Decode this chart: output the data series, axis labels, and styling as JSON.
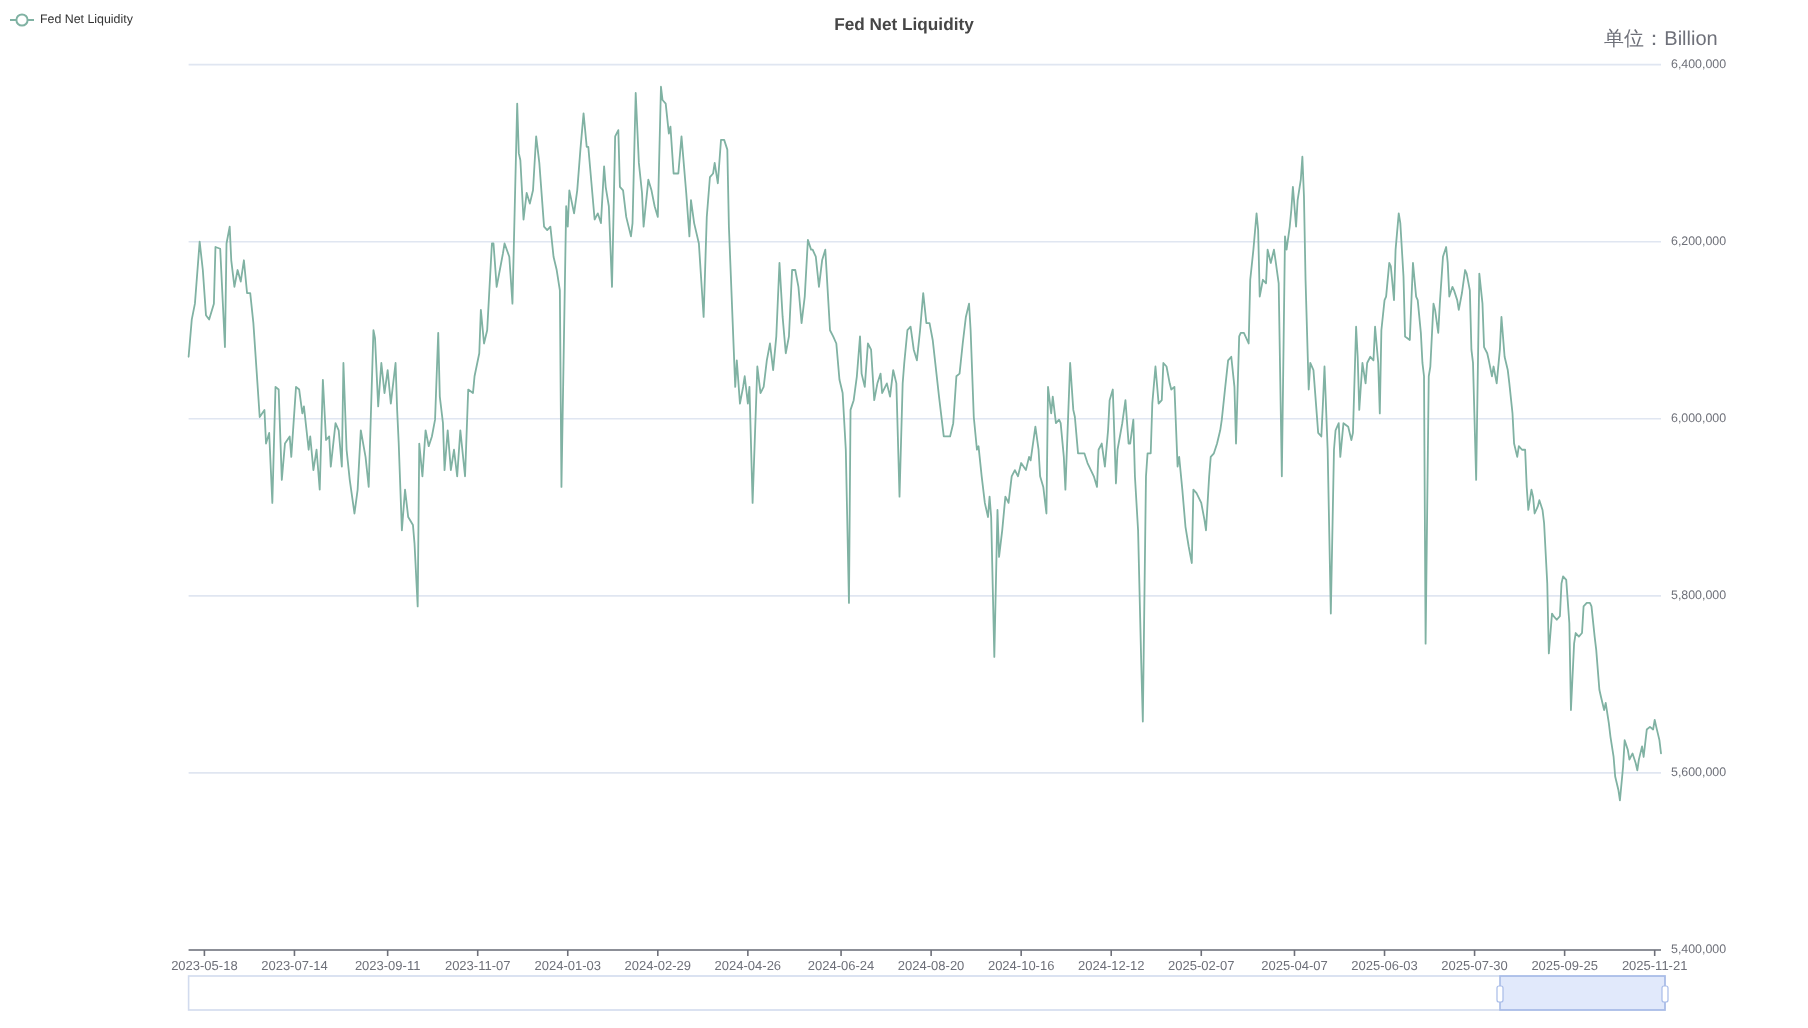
{
  "chart_data": {
    "type": "line",
    "title": "Fed Net Liquidity",
    "ylabel": "单位：Billion",
    "xlim": [
      "2023-05-08",
      "2025-11-25"
    ],
    "xticks": [
      "2023-05-18",
      "2023-07-14",
      "2023-09-11",
      "2023-11-07",
      "2024-01-03",
      "2024-02-29",
      "2024-04-26",
      "2024-06-24",
      "2024-08-20",
      "2024-10-16",
      "2024-12-12",
      "2025-02-07",
      "2025-04-07",
      "2025-06-03",
      "2025-07-30",
      "2025-09-25",
      "2025-11-21"
    ],
    "ylim": [
      5400000,
      6400000
    ],
    "yticks": [
      {
        "value": 5400000,
        "label": "5,400,000"
      },
      {
        "value": 5600000,
        "label": "5,600,000"
      },
      {
        "value": 5800000,
        "label": "5,800,000"
      },
      {
        "value": 6000000,
        "label": "6,000,000"
      },
      {
        "value": 6200000,
        "label": "6,200,000"
      },
      {
        "value": 6400000,
        "label": "6,400,000"
      }
    ],
    "grid": "y",
    "legend": "top left",
    "x": [
      "2023-05-08",
      "2023-05-10",
      "2023-05-12",
      "2023-05-15",
      "2023-05-17",
      "2023-05-19",
      "2023-05-21",
      "2023-05-24",
      "2023-05-25",
      "2023-05-28",
      "2023-05-31",
      "2023-06-01",
      "2023-06-03",
      "2023-06-04",
      "2023-06-06",
      "2023-06-08",
      "2023-06-10",
      "2023-06-12",
      "2023-06-14",
      "2023-06-16",
      "2023-06-18",
      "2023-06-20",
      "2023-06-22",
      "2023-06-25",
      "2023-06-26",
      "2023-06-28",
      "2023-06-30",
      "2023-07-02",
      "2023-07-04",
      "2023-07-06",
      "2023-07-08",
      "2023-07-11",
      "2023-07-12",
      "2023-07-15",
      "2023-07-17",
      "2023-07-19",
      "2023-07-20",
      "2023-07-23",
      "2023-07-24",
      "2023-07-26",
      "2023-07-28",
      "2023-07-30",
      "2023-08-01",
      "2023-08-03",
      "2023-08-05",
      "2023-08-06",
      "2023-08-09",
      "2023-08-11",
      "2023-08-13",
      "2023-08-14",
      "2023-08-16",
      "2023-08-18",
      "2023-08-21",
      "2023-08-23",
      "2023-08-25",
      "2023-08-28",
      "2023-08-30",
      "2023-09-02",
      "2023-09-03",
      "2023-09-05",
      "2023-09-07",
      "2023-09-09",
      "2023-09-11",
      "2023-09-13",
      "2023-09-16",
      "2023-09-17",
      "2023-09-18",
      "2023-09-20",
      "2023-09-22",
      "2023-09-24",
      "2023-09-27",
      "2023-09-28",
      "2023-09-30",
      "2023-10-01",
      "2023-10-03",
      "2023-10-05",
      "2023-10-07",
      "2023-10-09",
      "2023-10-11",
      "2023-10-13",
      "2023-10-14",
      "2023-10-16",
      "2023-10-17",
      "2023-10-19",
      "2023-10-21",
      "2023-10-23",
      "2023-10-25",
      "2023-10-27",
      "2023-10-30",
      "2023-11-01",
      "2023-11-04",
      "2023-11-05",
      "2023-11-08",
      "2023-11-09",
      "2023-11-11",
      "2023-11-13",
      "2023-11-16",
      "2023-11-17",
      "2023-11-19",
      "2023-11-21",
      "2023-11-23",
      "2023-11-24",
      "2023-11-27",
      "2023-11-29",
      "2023-12-02",
      "2023-12-03",
      "2023-12-04",
      "2023-12-06",
      "2023-12-08",
      "2023-12-10",
      "2023-12-12",
      "2023-12-14",
      "2023-12-16",
      "2023-12-19",
      "2023-12-21",
      "2023-12-23",
      "2023-12-25",
      "2023-12-27",
      "2023-12-29",
      "2023-12-30",
      "2024-01-02",
      "2024-01-03",
      "2024-01-04",
      "2024-01-07",
      "2024-01-09",
      "2024-01-11",
      "2024-01-13",
      "2024-01-15",
      "2024-01-16",
      "2024-01-18",
      "2024-01-20",
      "2024-01-22",
      "2024-01-24",
      "2024-01-26",
      "2024-01-27",
      "2024-01-29",
      "2024-01-31",
      "2024-02-02",
      "2024-02-04",
      "2024-02-05",
      "2024-02-07",
      "2024-02-09",
      "2024-02-12",
      "2024-02-13",
      "2024-02-15",
      "2024-02-17",
      "2024-02-19",
      "2024-02-20",
      "2024-02-23",
      "2024-02-25",
      "2024-02-27",
      "2024-02-29",
      "2024-03-02",
      "2024-03-03",
      "2024-03-05",
      "2024-03-07",
      "2024-03-08",
      "2024-03-10",
      "2024-03-13",
      "2024-03-15",
      "2024-03-18",
      "2024-03-20",
      "2024-03-21",
      "2024-03-23",
      "2024-03-26",
      "2024-03-29",
      "2024-03-31",
      "2024-04-02",
      "2024-04-04",
      "2024-04-05",
      "2024-04-07",
      "2024-04-09",
      "2024-04-11",
      "2024-04-13",
      "2024-04-14",
      "2024-04-18",
      "2024-04-19",
      "2024-04-21",
      "2024-04-23",
      "2024-04-24",
      "2024-04-26",
      "2024-04-27",
      "2024-04-29",
      "2024-05-02",
      "2024-05-04",
      "2024-05-06",
      "2024-05-08",
      "2024-05-10",
      "2024-05-12",
      "2024-05-14",
      "2024-05-16",
      "2024-05-18",
      "2024-05-20",
      "2024-05-22",
      "2024-05-24",
      "2024-05-26",
      "2024-05-28",
      "2024-05-30",
      "2024-06-01",
      "2024-06-03",
      "2024-06-05",
      "2024-06-06",
      "2024-06-08",
      "2024-06-10",
      "2024-06-12",
      "2024-06-14",
      "2024-06-17",
      "2024-06-19",
      "2024-06-21",
      "2024-06-23",
      "2024-06-25",
      "2024-06-27",
      "2024-06-29",
      "2024-06-30",
      "2024-07-02",
      "2024-07-04",
      "2024-07-06",
      "2024-07-07",
      "2024-07-09",
      "2024-07-11",
      "2024-07-13",
      "2024-07-15",
      "2024-07-17",
      "2024-07-19",
      "2024-07-20",
      "2024-07-23",
      "2024-07-25",
      "2024-07-27",
      "2024-07-29",
      "2024-07-31",
      "2024-08-02",
      "2024-08-03",
      "2024-08-05",
      "2024-08-07",
      "2024-08-09",
      "2024-08-11",
      "2024-08-13",
      "2024-08-15",
      "2024-08-17",
      "2024-08-19",
      "2024-08-21",
      "2024-08-25",
      "2024-08-28",
      "2024-09-01",
      "2024-09-03",
      "2024-09-05",
      "2024-09-07",
      "2024-09-09",
      "2024-09-11",
      "2024-09-13",
      "2024-09-14",
      "2024-09-16",
      "2024-09-18",
      "2024-09-19",
      "2024-09-21",
      "2024-09-23",
      "2024-09-25",
      "2024-09-26",
      "2024-09-27",
      "2024-09-29",
      "2024-10-01",
      "2024-10-02",
      "2024-10-04",
      "2024-10-06",
      "2024-10-08",
      "2024-10-10",
      "2024-10-12",
      "2024-10-14",
      "2024-10-16",
      "2024-10-19",
      "2024-10-21",
      "2024-10-22",
      "2024-10-25",
      "2024-10-27",
      "2024-10-28",
      "2024-10-30",
      "2024-11-01",
      "2024-11-02",
      "2024-11-04",
      "2024-11-05",
      "2024-11-07",
      "2024-11-09",
      "2024-11-10",
      "2024-11-12",
      "2024-11-13",
      "2024-11-16",
      "2024-11-18",
      "2024-11-19",
      "2024-11-21",
      "2024-11-25",
      "2024-11-27",
      "2024-12-01",
      "2024-12-03",
      "2024-12-04",
      "2024-12-06",
      "2024-12-08",
      "2024-12-10",
      "2024-12-11",
      "2024-12-13",
      "2024-12-15",
      "2024-12-16",
      "2024-12-19",
      "2024-12-21",
      "2024-12-23",
      "2024-12-24",
      "2024-12-26",
      "2024-12-27",
      "2024-12-29",
      "2024-12-31",
      "2025-01-01",
      "2025-01-03",
      "2025-01-04",
      "2025-01-06",
      "2025-01-07",
      "2025-01-09",
      "2025-01-11",
      "2025-01-13",
      "2025-01-14",
      "2025-01-16",
      "2025-01-18",
      "2025-01-19",
      "2025-01-21",
      "2025-01-23",
      "2025-01-24",
      "2025-01-26",
      "2025-01-28",
      "2025-01-30",
      "2025-02-01",
      "2025-02-02",
      "2025-02-04",
      "2025-02-07",
      "2025-02-09",
      "2025-02-10",
      "2025-02-12",
      "2025-02-13",
      "2025-02-15",
      "2025-02-17",
      "2025-02-19",
      "2025-02-20",
      "2025-02-22",
      "2025-02-24",
      "2025-02-26",
      "2025-02-28",
      "2025-03-01",
      "2025-03-03",
      "2025-03-04",
      "2025-03-06",
      "2025-03-09",
      "2025-03-10",
      "2025-03-12",
      "2025-03-14",
      "2025-03-15",
      "2025-03-16",
      "2025-03-18",
      "2025-03-20",
      "2025-03-21",
      "2025-03-23",
      "2025-03-25",
      "2025-03-26",
      "2025-03-28",
      "2025-03-30",
      "2025-04-01",
      "2025-04-02",
      "2025-04-04",
      "2025-04-05",
      "2025-04-06",
      "2025-04-08",
      "2025-04-09",
      "2025-04-11",
      "2025-04-12",
      "2025-04-13",
      "2025-04-14",
      "2025-04-16",
      "2025-04-17",
      "2025-04-19",
      "2025-04-22",
      "2025-04-24",
      "2025-04-25",
      "2025-04-26",
      "2025-04-28",
      "2025-04-30",
      "2025-05-02",
      "2025-05-03",
      "2025-05-05",
      "2025-05-06",
      "2025-05-08",
      "2025-05-11",
      "2025-05-13",
      "2025-05-14",
      "2025-05-16",
      "2025-05-17",
      "2025-05-18",
      "2025-05-20",
      "2025-05-22",
      "2025-05-23",
      "2025-05-25",
      "2025-05-27",
      "2025-05-28",
      "2025-05-30",
      "2025-05-31",
      "2025-06-01",
      "2025-06-03",
      "2025-06-04",
      "2025-06-06",
      "2025-06-07",
      "2025-06-09",
      "2025-06-10",
      "2025-06-12",
      "2025-06-13",
      "2025-06-15",
      "2025-06-16",
      "2025-06-19",
      "2025-06-21",
      "2025-06-23",
      "2025-06-24",
      "2025-06-26",
      "2025-06-27",
      "2025-06-28",
      "2025-06-29",
      "2025-07-01",
      "2025-07-02",
      "2025-07-04",
      "2025-07-05",
      "2025-07-07",
      "2025-07-08",
      "2025-07-10",
      "2025-07-12",
      "2025-07-13",
      "2025-07-14",
      "2025-07-16",
      "2025-07-17",
      "2025-07-19",
      "2025-07-20",
      "2025-07-22",
      "2025-07-24",
      "2025-07-25",
      "2025-07-27",
      "2025-07-28",
      "2025-07-29",
      "2025-07-31",
      "2025-08-02",
      "2025-08-04",
      "2025-08-05",
      "2025-08-07",
      "2025-08-08",
      "2025-08-10",
      "2025-08-11",
      "2025-08-13",
      "2025-08-15",
      "2025-08-16",
      "2025-08-18",
      "2025-08-20",
      "2025-08-21",
      "2025-08-23",
      "2025-08-24",
      "2025-08-26",
      "2025-08-27",
      "2025-08-29",
      "2025-08-31",
      "2025-09-01",
      "2025-09-02",
      "2025-09-04",
      "2025-09-05",
      "2025-09-06",
      "2025-09-08",
      "2025-09-09",
      "2025-09-11",
      "2025-09-12",
      "2025-09-14",
      "2025-09-15",
      "2025-09-17",
      "2025-09-18",
      "2025-09-20",
      "2025-09-22",
      "2025-09-23",
      "2025-09-24",
      "2025-09-26",
      "2025-09-28",
      "2025-09-29",
      "2025-10-01",
      "2025-10-02",
      "2025-10-04",
      "2025-10-06",
      "2025-10-07",
      "2025-10-09",
      "2025-10-11",
      "2025-10-12",
      "2025-10-14",
      "2025-10-15",
      "2025-10-17",
      "2025-10-18",
      "2025-10-20",
      "2025-10-21",
      "2025-10-23",
      "2025-10-24",
      "2025-10-26",
      "2025-10-27",
      "2025-10-29",
      "2025-10-30",
      "2025-11-01",
      "2025-11-02",
      "2025-11-04",
      "2025-11-05",
      "2025-11-07",
      "2025-11-09",
      "2025-11-10",
      "2025-11-11",
      "2025-11-13",
      "2025-11-14",
      "2025-11-16",
      "2025-11-18",
      "2025-11-20",
      "2025-11-21",
      "2025-11-22",
      "2025-11-24",
      "2025-11-25"
    ],
    "series": [
      {
        "name": "Fed Net Liquidity",
        "color": "#80b2a3",
        "values": [
          6070000,
          6112000,
          6130000,
          6200000,
          6168000,
          6117000,
          6112000,
          6130000,
          6194000,
          6192000,
          6081000,
          6198000,
          6217000,
          6179000,
          6149000,
          6168000,
          6155000,
          6179000,
          6142000,
          6142000,
          6108000,
          6055000,
          6002000,
          6010000,
          5972000,
          5984000,
          5905000,
          6036000,
          6033000,
          5931000,
          5972000,
          5980000,
          5957000,
          6036000,
          6033000,
          6006000,
          6014000,
          5965000,
          5980000,
          5942000,
          5965000,
          5920000,
          6044000,
          5976000,
          5980000,
          5946000,
          5995000,
          5987000,
          5946000,
          6063000,
          5965000,
          5931000,
          5893000,
          5920000,
          5987000,
          5957000,
          5923000,
          6100000,
          6091000,
          6014000,
          6063000,
          6029000,
          6055000,
          6017000,
          6063000,
          6010000,
          5972000,
          5874000,
          5920000,
          5889000,
          5880000,
          5859000,
          5788000,
          5972000,
          5935000,
          5987000,
          5969000,
          5980000,
          5999000,
          6097000,
          6025000,
          5995000,
          5942000,
          5987000,
          5942000,
          5965000,
          5935000,
          5987000,
          5935000,
          6033000,
          6029000,
          6048000,
          6074000,
          6123000,
          6085000,
          6100000,
          6198000,
          6198000,
          6149000,
          6168000,
          6187000,
          6198000,
          6183000,
          6130000,
          6356000,
          6300000,
          6292000,
          6225000,
          6255000,
          6243000,
          6258000,
          6319000,
          6289000,
          6217000,
          6213000,
          6217000,
          6183000,
          6168000,
          6145000,
          5923000,
          6240000,
          6217000,
          6258000,
          6232000,
          6258000,
          6304000,
          6345000,
          6307000,
          6307000,
          6266000,
          6225000,
          6232000,
          6221000,
          6285000,
          6262000,
          6240000,
          6149000,
          6319000,
          6326000,
          6262000,
          6258000,
          6228000,
          6206000,
          6221000,
          6368000,
          6289000,
          6255000,
          6217000,
          6270000,
          6258000,
          6240000,
          6228000,
          6375000,
          6360000,
          6356000,
          6322000,
          6330000,
          6277000,
          6277000,
          6319000,
          6255000,
          6206000,
          6247000,
          6221000,
          6198000,
          6115000,
          6228000,
          6273000,
          6277000,
          6289000,
          6266000,
          6315000,
          6315000,
          6304000,
          6217000,
          6036000,
          6066000,
          6017000,
          6036000,
          6048000,
          6017000,
          6036000,
          5905000,
          6059000,
          6029000,
          6036000,
          6066000,
          6085000,
          6055000,
          6093000,
          6176000,
          6115000,
          6074000,
          6093000,
          6168000,
          6168000,
          6149000,
          6108000,
          6138000,
          6202000,
          6191000,
          6191000,
          6183000,
          6149000,
          6179000,
          6191000,
          6100000,
          6093000,
          6085000,
          6044000,
          6029000,
          5965000,
          5792000,
          6010000,
          6021000,
          6048000,
          6093000,
          6051000,
          6036000,
          6085000,
          6078000,
          6021000,
          6040000,
          6051000,
          6029000,
          6040000,
          6025000,
          6055000,
          6040000,
          5912000,
          6040000,
          6063000,
          6100000,
          6104000,
          6078000,
          6066000,
          6100000,
          6142000,
          6108000,
          6108000,
          6089000,
          6025000,
          5980000,
          5980000,
          5995000,
          6048000,
          6051000,
          6085000,
          6115000,
          6130000,
          6100000,
          6002000,
          5965000,
          5969000,
          5935000,
          5905000,
          5889000,
          5912000,
          5889000,
          5731000,
          5897000,
          5844000,
          5874000,
          5912000,
          5905000,
          5935000,
          5942000,
          5935000,
          5950000,
          5942000,
          5957000,
          5953000,
          5991000,
          5965000,
          5935000,
          5923000,
          5893000,
          6036000,
          6006000,
          6025000,
          5995000,
          5999000,
          5995000,
          5957000,
          5920000,
          6063000,
          6010000,
          6002000,
          5961000,
          5961000,
          5950000,
          5935000,
          5923000,
          5965000,
          5972000,
          5946000,
          5987000,
          6021000,
          6033000,
          5927000,
          5965000,
          5995000,
          6021000,
          5972000,
          5972000,
          5999000,
          5935000,
          5874000,
          5724000,
          5658000,
          5935000,
          5961000,
          5961000,
          6017000,
          6059000,
          6017000,
          6021000,
          6063000,
          6059000,
          6040000,
          6033000,
          6036000,
          5946000,
          5957000,
          5920000,
          5878000,
          5856000,
          5837000,
          5920000,
          5916000,
          5905000,
          5886000,
          5874000,
          5935000,
          5957000,
          5961000,
          5972000,
          5987000,
          5999000,
          6033000,
          6066000,
          6070000,
          6036000,
          5972000,
          6093000,
          6097000,
          6097000,
          6085000,
          6157000,
          6191000,
          6232000,
          6213000,
          6138000,
          6157000,
          6153000,
          6191000,
          6176000,
          6191000,
          6179000,
          6153000,
          5935000,
          6206000,
          6191000,
          6217000,
          6236000,
          6262000,
          6217000,
          6247000,
          6270000,
          6296000,
          6251000,
          6157000,
          6033000,
          6063000,
          6055000,
          5984000,
          5980000,
          6017000,
          6059000,
          5965000,
          5780000,
          5965000,
          5987000,
          5995000,
          5957000,
          5995000,
          5991000,
          5976000,
          5984000,
          6104000,
          6070000,
          6010000,
          6063000,
          6040000,
          6063000,
          6070000,
          6066000,
          6104000,
          6063000,
          6006000,
          6100000,
          6134000,
          6138000,
          6176000,
          6172000,
          6134000,
          6191000,
          6232000,
          6221000,
          6161000,
          6093000,
          6089000,
          6176000,
          6138000,
          6134000,
          6097000,
          6063000,
          6048000,
          5746000,
          6048000,
          6059000,
          6130000,
          6123000,
          6097000,
          6130000,
          6183000,
          6194000,
          6176000,
          6138000,
          6149000,
          6145000,
          6134000,
          6123000,
          6142000,
          6168000,
          6164000,
          6145000,
          6078000,
          6063000,
          5931000,
          6164000,
          6130000,
          6081000,
          6074000,
          6066000,
          6048000,
          6059000,
          6040000,
          6078000,
          6115000,
          6070000,
          6055000,
          6040000,
          6006000,
          5972000,
          5957000,
          5969000,
          5965000,
          5965000,
          5923000,
          5897000,
          5920000,
          5912000,
          5893000,
          5901000,
          5908000,
          5897000,
          5882000,
          5814000,
          5735000,
          5780000,
          5777000,
          5773000,
          5777000,
          5814000,
          5822000,
          5818000,
          5769000,
          5671000,
          5746000,
          5758000,
          5754000,
          5758000,
          5788000,
          5792000,
          5792000,
          5788000,
          5754000,
          5739000,
          5694000,
          5686000,
          5671000,
          5679000,
          5656000,
          5641000,
          5618000,
          5596000,
          5581000,
          5569000,
          5607000,
          5637000,
          5626000,
          5615000,
          5622000,
          5611000,
          5603000,
          5615000,
          5630000,
          5618000,
          5649000,
          5652000,
          5649000,
          5660000,
          5652000,
          5637000,
          5622000
        ]
      }
    ]
  }
}
